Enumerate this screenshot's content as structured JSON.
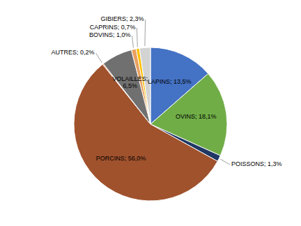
{
  "chart_data": {
    "type": "pie",
    "categories": [
      "LAPINS; 13,5%",
      "OVINS; 18,1%",
      "POISSONS; 1,3%",
      "PORCINS; 56,0%",
      "AUTRES; 0,2%",
      "VOLAILLES;\n6,5%",
      "BOVINS; 1,0%",
      "CAPRINS; 0,7%",
      "GIBIERS; 2,3%"
    ],
    "values": [
      13.5,
      18.1,
      1.3,
      56.0,
      0.2,
      6.5,
      1.0,
      0.7,
      2.3
    ],
    "colors": [
      "#4472C4",
      "#70AD47",
      "#1F3864",
      "#A0522D",
      "#E2693A",
      "#707070",
      "#E8A060",
      "#FFC000",
      "#D3D3D3"
    ]
  }
}
